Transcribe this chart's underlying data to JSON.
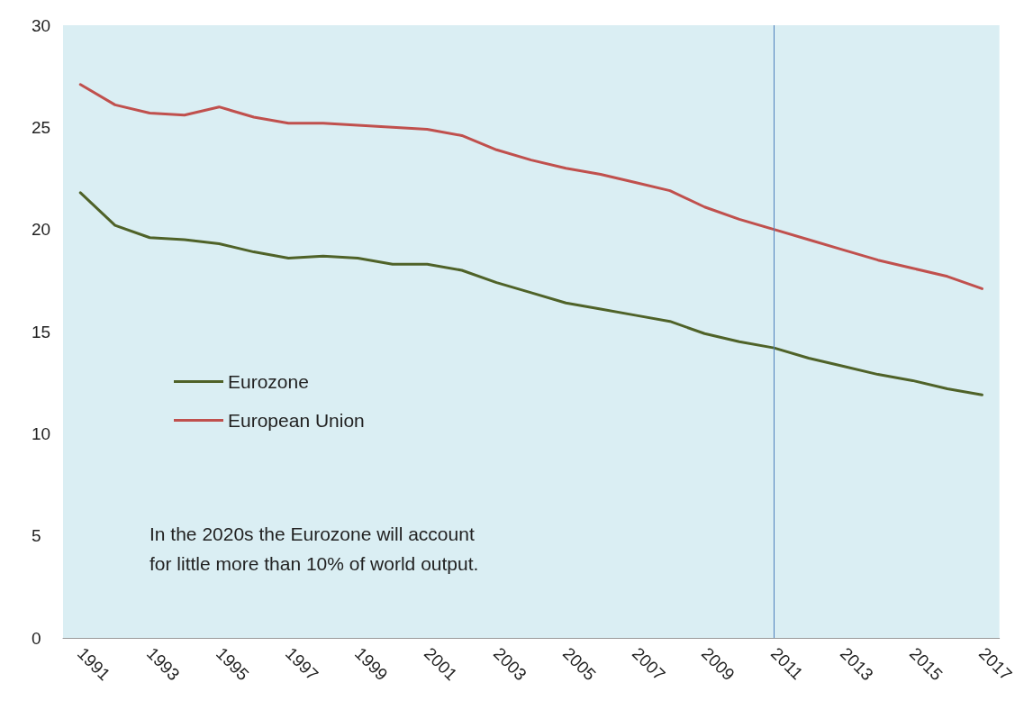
{
  "chart_data": {
    "type": "line",
    "categories": [
      "1991",
      null,
      "1993",
      null,
      "1995",
      null,
      "1997",
      null,
      "1999",
      null,
      "2001",
      null,
      "2003",
      null,
      "2005",
      null,
      "2007",
      null,
      "2009",
      null,
      "2011",
      null,
      "2013",
      null,
      "2015",
      null,
      "2017"
    ],
    "series": [
      {
        "name": "Eurozone",
        "color": "#4f6228",
        "values": [
          21.8,
          20.2,
          19.6,
          19.5,
          19.3,
          18.9,
          18.6,
          18.7,
          18.6,
          18.3,
          18.3,
          18.0,
          17.4,
          16.9,
          16.4,
          16.1,
          15.8,
          15.5,
          14.9,
          14.5,
          14.2,
          13.7,
          13.3,
          12.9,
          12.6,
          12.2,
          11.9
        ]
      },
      {
        "name": "European Union",
        "color": "#c0504d",
        "values": [
          27.1,
          26.1,
          25.7,
          25.6,
          26.0,
          25.5,
          25.2,
          25.2,
          25.1,
          25.0,
          24.9,
          24.6,
          23.9,
          23.4,
          23.0,
          22.7,
          22.3,
          21.9,
          21.1,
          20.5,
          20.0,
          19.5,
          19.0,
          18.5,
          18.1,
          17.7,
          17.1
        ]
      }
    ],
    "ylim": [
      0,
      30
    ],
    "yticks": [
      0,
      5,
      10,
      15,
      20,
      25,
      30
    ],
    "grid": false,
    "legend": "left",
    "marker": "none",
    "line_style": "solid",
    "ref_lines": [
      {
        "axis": "x",
        "value": "2011",
        "color": "#4f81bd"
      }
    ],
    "annotations": [
      "In the 2020s the Eurozone will account\nfor little more than 10% of world output."
    ]
  }
}
